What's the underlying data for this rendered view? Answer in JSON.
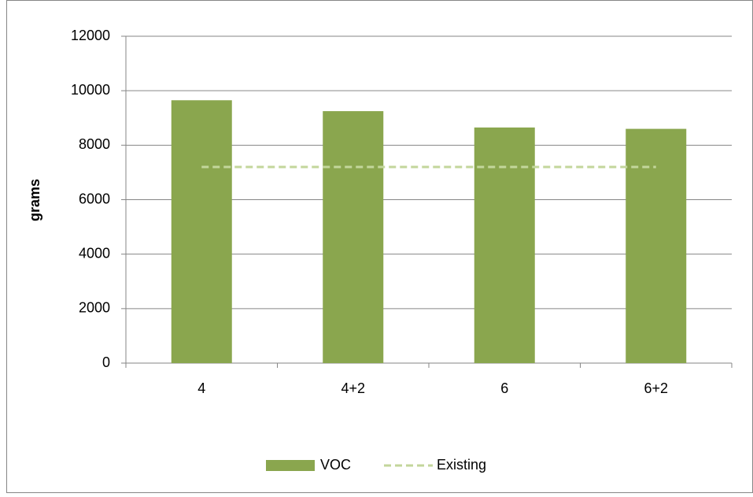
{
  "chart_data": {
    "type": "bar",
    "ylabel": "grams",
    "categories": [
      "4",
      "4+2",
      "6",
      "6+2"
    ],
    "series": [
      {
        "name": "VOC",
        "type": "bar",
        "color": "#8aa64e",
        "values": [
          9650,
          9250,
          8650,
          8600
        ]
      },
      {
        "name": "Existing",
        "type": "line",
        "dashed": true,
        "color": "#c3d69b",
        "values": [
          7200,
          7200,
          7200,
          7200
        ]
      }
    ],
    "ylim": [
      0,
      12000
    ],
    "yticks": [
      0,
      2000,
      4000,
      6000,
      8000,
      10000,
      12000
    ],
    "grid": true,
    "legend": "bottom"
  }
}
